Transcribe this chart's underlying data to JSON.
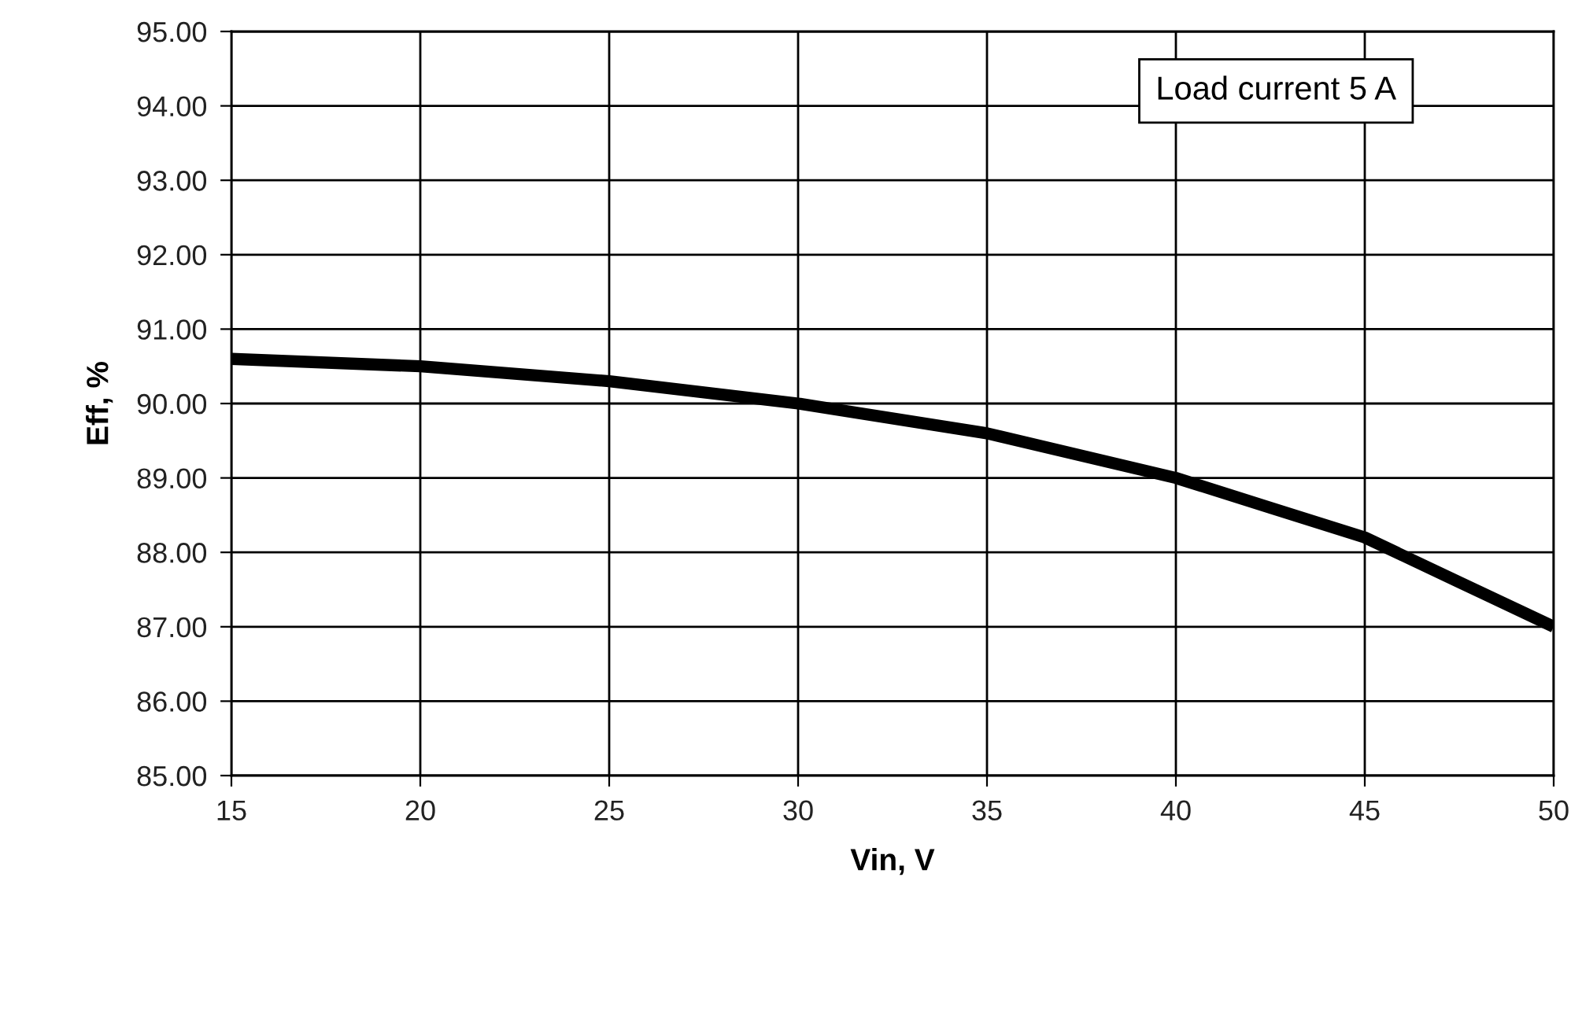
{
  "chart_data": {
    "type": "line",
    "xlabel": "Vin, V",
    "ylabel": "Eff, %",
    "annotations": [
      "Load current 5 A"
    ],
    "x": [
      15,
      20,
      25,
      30,
      35,
      40,
      42.5,
      45,
      47.5,
      50
    ],
    "series": [
      {
        "color": "#000000",
        "values": [
          90.6,
          90.5,
          90.3,
          90.0,
          89.6,
          89.0,
          88.6,
          88.2,
          87.6,
          87.0
        ]
      }
    ],
    "xlim": [
      15,
      50
    ],
    "xticks": [
      15,
      20,
      25,
      30,
      35,
      40,
      45,
      50
    ],
    "ylim": [
      85,
      95
    ],
    "yticks": [
      {
        "value": 85,
        "label": "85.00"
      },
      {
        "value": 86,
        "label": "86.00"
      },
      {
        "value": 87,
        "label": "87.00"
      },
      {
        "value": 88,
        "label": "88.00"
      },
      {
        "value": 89,
        "label": "89.00"
      },
      {
        "value": 90,
        "label": "90.00"
      },
      {
        "value": 91,
        "label": "91.00"
      },
      {
        "value": 92,
        "label": "92.00"
      },
      {
        "value": 93,
        "label": "93.00"
      },
      {
        "value": 94,
        "label": "94.00"
      },
      {
        "value": 95,
        "label": "95.00"
      }
    ],
    "grid": true,
    "marker": "none",
    "line_style": "solid"
  }
}
